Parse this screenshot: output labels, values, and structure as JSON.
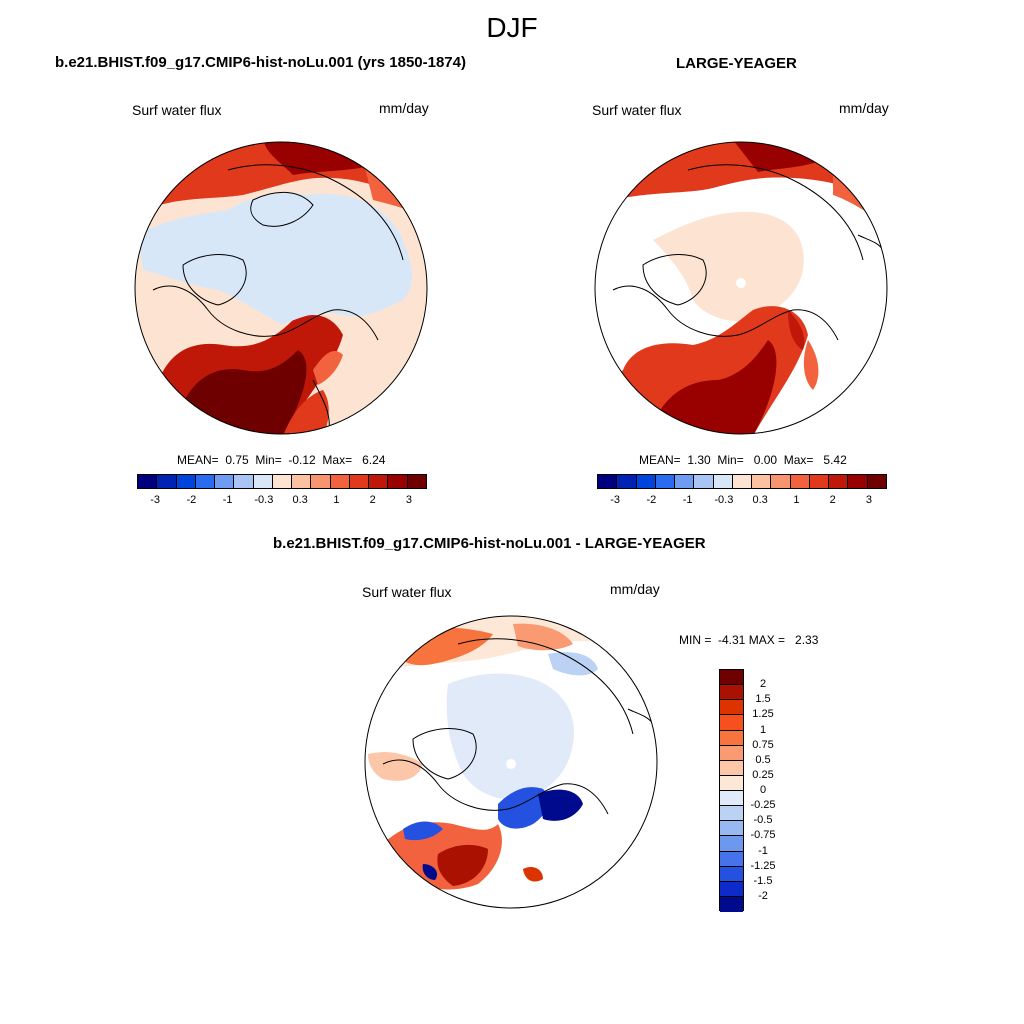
{
  "figure": {
    "title": "DJF",
    "panels": [
      {
        "id": "case",
        "title": "b.e21.BHIST.f09_g17.CMIP6-hist-noLu.001 (yrs 1850-1874)",
        "var_label": "Surf water flux",
        "units": "mm/day",
        "stats": "MEAN=  0.75  Min=  -0.12  Max=   6.24"
      },
      {
        "id": "ref",
        "title": "LARGE-YEAGER",
        "var_label": "Surf water flux",
        "units": "mm/day",
        "stats": "MEAN=  1.30  Min=   0.00  Max=   5.42"
      },
      {
        "id": "diff",
        "title": "b.e21.BHIST.f09_g17.CMIP6-hist-noLu.001 - LARGE-YEAGER",
        "var_label": "Surf water flux",
        "units": "mm/day",
        "stats": "MIN =  -4.31 MAX =   2.33"
      }
    ],
    "colorbar_abs": {
      "colors": [
        "#00007f",
        "#0022b4",
        "#0044dd",
        "#2a6cf0",
        "#6f9bf2",
        "#a8c5f5",
        "#d8e7f8",
        "#fde4d2",
        "#fcc1a0",
        "#f89570",
        "#f2623e",
        "#e0391c",
        "#c01808",
        "#990000",
        "#6f0000"
      ],
      "tick_labels": [
        "-3",
        "-2",
        "-1",
        "-0.3",
        "0.3",
        "1",
        "2",
        "3"
      ]
    },
    "colorbar_diff": {
      "colors": [
        "#6f0000",
        "#aa1100",
        "#dd3300",
        "#f5501d",
        "#f7743f",
        "#f99a72",
        "#fcc7a8",
        "#fde8d8",
        "#e1eaf8",
        "#bcd2f4",
        "#98b8f1",
        "#6e97ee",
        "#4773ea",
        "#2451e0",
        "#0c2bc8",
        "#000a8c"
      ],
      "tick_labels": [
        "2",
        "1.5",
        "1.25",
        "1",
        "0.75",
        "0.5",
        "0.25",
        "0",
        "-0.25",
        "-0.5",
        "-0.75",
        "-1",
        "-1.25",
        "-1.5",
        "-2"
      ]
    }
  }
}
